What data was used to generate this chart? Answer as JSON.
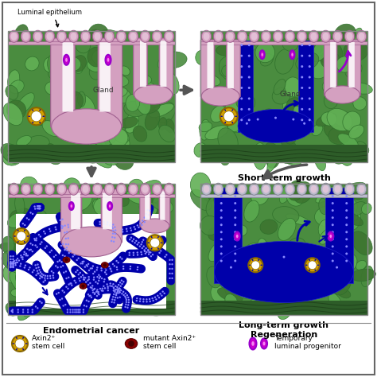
{
  "bg_color": "#ffffff",
  "green_base": "#4a8c3f",
  "green_light": "#5aaa4f",
  "green_dark": "#2d6e2a",
  "green_cell_light": "#6abf5e",
  "pink_gland": "#d4a0c0",
  "pink_outline": "#a06090",
  "pink_light": "#e8c8dc",
  "blue_dark": "#0000aa",
  "blue_medium": "#2222cc",
  "blue_dots": "#8888ff",
  "gold_outer": "#d4a000",
  "gold_inner": "#ffffff",
  "dark_red": "#8B0000",
  "purple_arrow": "#9900CC",
  "magenta": "#cc00cc",
  "gray_arrow": "#555555",
  "gray_dark": "#333333",
  "labels": {
    "luminal_epithelium": "Luminal epithelium",
    "short_term": "Short-term growth",
    "endometrial": "Endometrial cancer",
    "long_term_1": "Long-term growth",
    "long_term_2": "Regeneration",
    "gland": "Gland"
  },
  "legend": {
    "item1_label1": "Axin2",
    "item1_label2": "stem cell",
    "item2_label1": "mutant Axin2",
    "item2_label2": "stem cell",
    "item3_label1": "Temporary",
    "item3_label2": "luminal progenitor"
  }
}
